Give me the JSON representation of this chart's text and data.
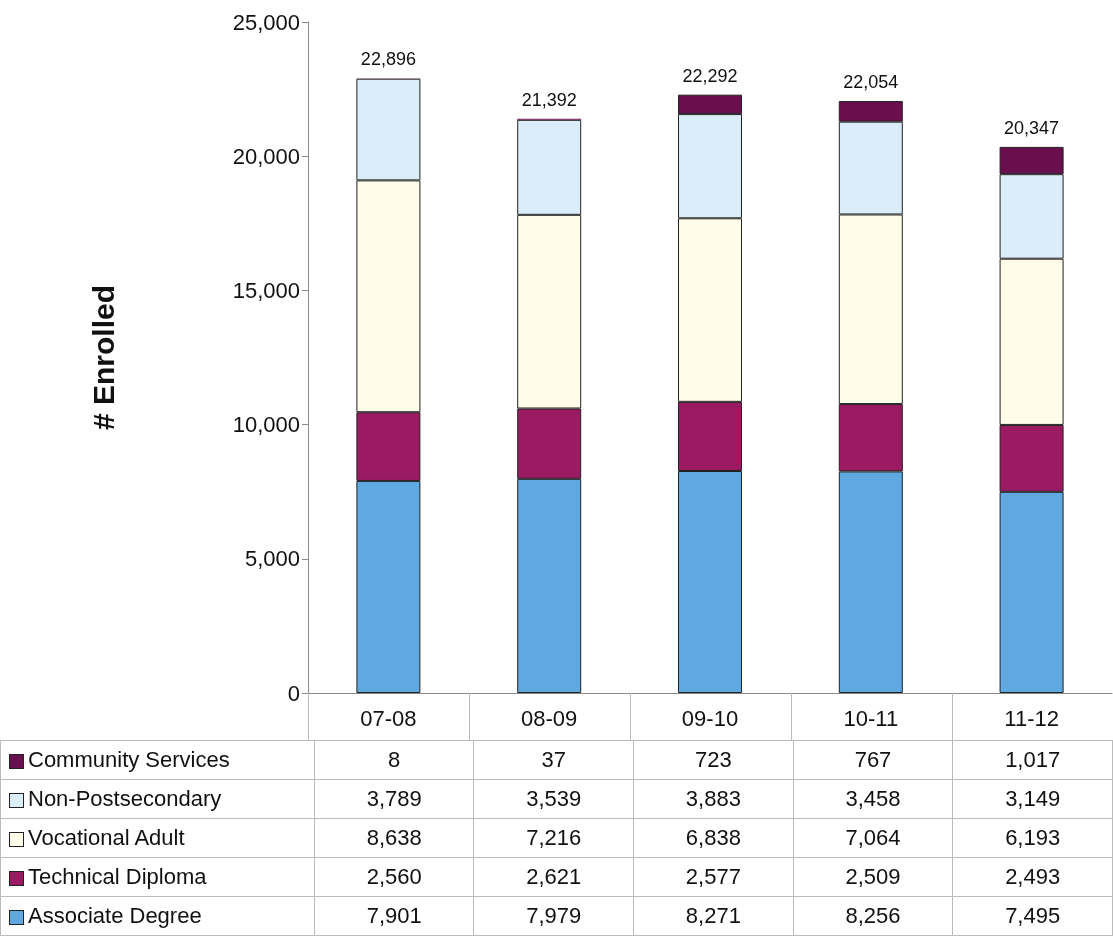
{
  "chart_data": {
    "type": "bar",
    "ylabel": "# Enrolled",
    "stacked": true,
    "categories": [
      "07-08",
      "08-09",
      "09-10",
      "10-11",
      "11-12"
    ],
    "series": [
      {
        "name": "Associate Degree",
        "color": "#5fa8e0",
        "values": [
          7901,
          7979,
          8271,
          8256,
          7495
        ],
        "value_labels": [
          "7,901",
          "7,979",
          "8,271",
          "8,256",
          "7,495"
        ]
      },
      {
        "name": "Technical Diploma",
        "color": "#9b1b62",
        "values": [
          2560,
          2621,
          2577,
          2509,
          2493
        ],
        "value_labels": [
          "2,560",
          "2,621",
          "2,577",
          "2,509",
          "2,493"
        ]
      },
      {
        "name": "Vocational Adult",
        "color": "#fffdea",
        "values": [
          8638,
          7216,
          6838,
          7064,
          6193
        ],
        "value_labels": [
          "8,638",
          "7,216",
          "6,838",
          "7,064",
          "6,193"
        ]
      },
      {
        "name": "Non-Postsecondary",
        "color": "#dcedfa",
        "values": [
          3789,
          3539,
          3883,
          3458,
          3149
        ],
        "value_labels": [
          "3,789",
          "3,539",
          "3,883",
          "3,458",
          "3,149"
        ]
      },
      {
        "name": "Community Services",
        "color": "#6a0f4e",
        "values": [
          8,
          37,
          723,
          767,
          1017
        ],
        "value_labels": [
          "8",
          "37",
          "723",
          "767",
          "1,017"
        ]
      }
    ],
    "totals": [
      "22,896",
      "21,392",
      "22,292",
      "22,054",
      "20,347"
    ],
    "ylim": [
      0,
      25000
    ],
    "yticks": [
      0,
      {
        "value": 5000,
        "label": "5,000"
      },
      {
        "value": 10000,
        "label": "10,000"
      },
      {
        "value": 15000,
        "label": "15,000"
      },
      {
        "value": 20000,
        "label": "20,000"
      },
      {
        "value": 25000,
        "label": "25,000"
      }
    ],
    "grid": false,
    "legend": "bottom"
  }
}
